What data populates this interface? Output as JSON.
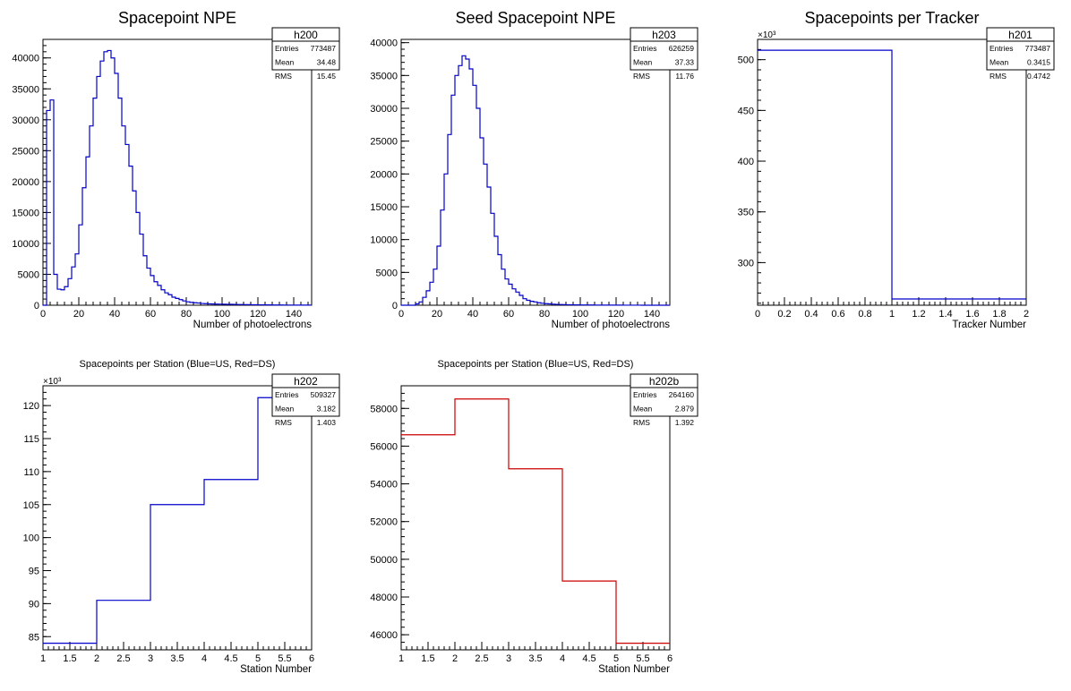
{
  "chart_data": [
    {
      "id": "h200",
      "type": "histogram",
      "title": "Spacepoint NPE",
      "xlabel": "Number of photoelectrons",
      "ylabel": "",
      "xlim": [
        0,
        150
      ],
      "ylim": [
        0,
        43000
      ],
      "x_ticks": [
        0,
        20,
        40,
        60,
        80,
        100,
        120,
        140
      ],
      "y_ticks": [
        0,
        5000,
        10000,
        15000,
        20000,
        25000,
        30000,
        35000,
        40000
      ],
      "y_multiplier": "",
      "line_color": "#0000cc",
      "stats": {
        "name": "h200",
        "rows": [
          {
            "label": "Entries",
            "value": "773487"
          },
          {
            "label": "Mean",
            "value": "34.48"
          },
          {
            "label": "RMS",
            "value": "15.45"
          }
        ]
      },
      "bin_edges": [
        0,
        2,
        4,
        6,
        8,
        10,
        12,
        14,
        16,
        18,
        20,
        22,
        24,
        26,
        28,
        30,
        32,
        34,
        36,
        38,
        40,
        42,
        44,
        46,
        48,
        50,
        52,
        54,
        56,
        58,
        60,
        62,
        64,
        66,
        68,
        70,
        72,
        74,
        76,
        78,
        80,
        82,
        84,
        86,
        88,
        90,
        92,
        94,
        96,
        98,
        100,
        102,
        104,
        106,
        108,
        110,
        112,
        114,
        116,
        118,
        120,
        122,
        124,
        126,
        128,
        130,
        132,
        134,
        136,
        138,
        140,
        142,
        144,
        146,
        148,
        150
      ],
      "values": [
        0,
        31500,
        33200,
        5000,
        2600,
        2500,
        3000,
        4300,
        6200,
        8300,
        13000,
        19000,
        24000,
        29000,
        33500,
        37000,
        39500,
        41000,
        41200,
        40000,
        37500,
        33500,
        29000,
        26000,
        22500,
        18500,
        15000,
        11500,
        8000,
        6000,
        4800,
        3800,
        3200,
        2500,
        2000,
        1700,
        1300,
        1100,
        900,
        700,
        550,
        450,
        400,
        350,
        280,
        250,
        220,
        200,
        180,
        170,
        160,
        150,
        140,
        130,
        120,
        110,
        100,
        90,
        80,
        70,
        65,
        60,
        55,
        50,
        45,
        40,
        35,
        30,
        28,
        25,
        22,
        20,
        18,
        16,
        15
      ]
    },
    {
      "id": "h203",
      "type": "histogram",
      "title": "Seed Spacepoint NPE",
      "xlabel": "Number of photoelectrons",
      "ylabel": "",
      "xlim": [
        0,
        150
      ],
      "ylim": [
        0,
        40500
      ],
      "x_ticks": [
        0,
        20,
        40,
        60,
        80,
        100,
        120,
        140
      ],
      "y_ticks": [
        0,
        5000,
        10000,
        15000,
        20000,
        25000,
        30000,
        35000,
        40000
      ],
      "y_multiplier": "",
      "line_color": "#0000cc",
      "stats": {
        "name": "h203",
        "rows": [
          {
            "label": "Entries",
            "value": "626259"
          },
          {
            "label": "Mean",
            "value": "37.33"
          },
          {
            "label": "RMS",
            "value": "11.76"
          }
        ]
      },
      "bin_edges": [
        0,
        2,
        4,
        6,
        8,
        10,
        12,
        14,
        16,
        18,
        20,
        22,
        24,
        26,
        28,
        30,
        32,
        34,
        36,
        38,
        40,
        42,
        44,
        46,
        48,
        50,
        52,
        54,
        56,
        58,
        60,
        62,
        64,
        66,
        68,
        70,
        72,
        74,
        76,
        78,
        80,
        82,
        84,
        86,
        88,
        90,
        92,
        94,
        96,
        98,
        100,
        102,
        104,
        106,
        108,
        110,
        112,
        114,
        116,
        118,
        120,
        122,
        124,
        126,
        128,
        130,
        132,
        134,
        136,
        138,
        140,
        142,
        144,
        146,
        148,
        150
      ],
      "values": [
        0,
        0,
        0,
        0,
        200,
        500,
        1200,
        2200,
        3500,
        5500,
        9000,
        14500,
        20000,
        26000,
        32000,
        35000,
        36500,
        38000,
        37500,
        36000,
        33500,
        30000,
        25500,
        21500,
        18000,
        14000,
        10500,
        7700,
        5500,
        4000,
        3200,
        2500,
        2000,
        1500,
        1000,
        750,
        600,
        500,
        380,
        300,
        240,
        200,
        160,
        130,
        110,
        95,
        80,
        70,
        60,
        50,
        45,
        40,
        35,
        30,
        28,
        25,
        22,
        20,
        18,
        16,
        14,
        12,
        10,
        9,
        8,
        7,
        6,
        5,
        4,
        4,
        3,
        3,
        2,
        2,
        1
      ]
    },
    {
      "id": "h201",
      "type": "histogram",
      "title": "Spacepoints per Tracker",
      "xlabel": "Tracker Number",
      "ylabel": "",
      "xlim": [
        0,
        2
      ],
      "ylim": [
        258,
        520
      ],
      "x_ticks": [
        0,
        0.2,
        0.4,
        0.6,
        0.8,
        1,
        1.2,
        1.4,
        1.6,
        1.8,
        2
      ],
      "y_ticks": [
        300,
        350,
        400,
        450,
        500
      ],
      "y_multiplier": "×10³",
      "line_color": "#0000cc",
      "stats": {
        "name": "h201",
        "rows": [
          {
            "label": "Entries",
            "value": "773487"
          },
          {
            "label": "Mean",
            "value": "0.3415"
          },
          {
            "label": "RMS",
            "value": "0.4742"
          }
        ]
      },
      "bin_edges": [
        0,
        1,
        2
      ],
      "values": [
        509.3,
        264.2
      ]
    },
    {
      "id": "h202",
      "type": "histogram",
      "title": "Spacepoints per Station (Blue=US, Red=DS)",
      "xlabel": "Station Number",
      "ylabel": "",
      "xlim": [
        1,
        6
      ],
      "ylim": [
        83,
        123
      ],
      "x_ticks": [
        1,
        1.5,
        2,
        2.5,
        3,
        3.5,
        4,
        4.5,
        5,
        5.5,
        6
      ],
      "y_ticks": [
        85,
        90,
        95,
        100,
        105,
        110,
        115,
        120
      ],
      "y_multiplier": "×10³",
      "line_color": "#0000cc",
      "stats": {
        "name": "h202",
        "rows": [
          {
            "label": "Entries",
            "value": "509327"
          },
          {
            "label": "Mean",
            "value": "3.182"
          },
          {
            "label": "RMS",
            "value": "1.403"
          }
        ]
      },
      "bin_edges": [
        1,
        2,
        3,
        4,
        5,
        6
      ],
      "values": [
        84.0,
        90.5,
        105.0,
        108.8,
        121.2
      ]
    },
    {
      "id": "h202b",
      "type": "histogram",
      "title": "Spacepoints per Station (Blue=US, Red=DS)",
      "xlabel": "Station Number",
      "ylabel": "",
      "xlim": [
        1,
        6
      ],
      "ylim": [
        45200,
        59200
      ],
      "x_ticks": [
        1,
        1.5,
        2,
        2.5,
        3,
        3.5,
        4,
        4.5,
        5,
        5.5,
        6
      ],
      "y_ticks": [
        46000,
        48000,
        50000,
        52000,
        54000,
        56000,
        58000
      ],
      "y_multiplier": "",
      "line_color": "#cc0000",
      "stats": {
        "name": "h202b",
        "rows": [
          {
            "label": "Entries",
            "value": "264160"
          },
          {
            "label": "Mean",
            "value": "2.879"
          },
          {
            "label": "RMS",
            "value": "1.392"
          }
        ]
      },
      "bin_edges": [
        1,
        2,
        3,
        4,
        5,
        6
      ],
      "values": [
        56600,
        58500,
        54800,
        48850,
        45550
      ]
    }
  ]
}
